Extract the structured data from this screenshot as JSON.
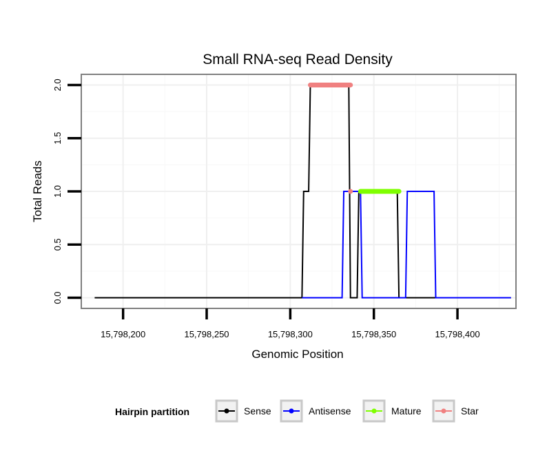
{
  "chart_data": {
    "type": "line",
    "title": "Small RNA-seq Read Density",
    "xlabel": "Genomic Position",
    "ylabel": "Total Reads",
    "xlim": [
      15798175,
      15798435
    ],
    "ylim": [
      -0.1,
      2.1
    ],
    "x_ticks": [
      15798200,
      15798250,
      15798300,
      15798350,
      15798400
    ],
    "x_tick_labels": [
      "15,798,200",
      "15,798,250",
      "15,798,300",
      "15,798,350",
      "15,798,400"
    ],
    "y_ticks": [
      0.0,
      0.5,
      1.0,
      1.5,
      2.0
    ],
    "y_tick_labels": [
      "0.0",
      "0.5",
      "1.0",
      "1.5",
      "2.0"
    ],
    "grid": true,
    "legend": {
      "title": "Hairpin partition",
      "position": "bottom",
      "entries": [
        {
          "name": "Sense",
          "color": "#000000"
        },
        {
          "name": "Antisense",
          "color": "#0000ff"
        },
        {
          "name": "Mature",
          "color": "#7fff00"
        },
        {
          "name": "Star",
          "color": "#f08080"
        }
      ]
    },
    "series": [
      {
        "name": "Sense",
        "color": "#000000",
        "style": "line",
        "x": [
          15798183,
          15798307,
          15798308,
          15798311,
          15798312,
          15798335,
          15798336,
          15798340,
          15798341,
          15798364,
          15798365,
          15798432
        ],
        "y": [
          0,
          0,
          1,
          1,
          2,
          2,
          0,
          0,
          1,
          1,
          0,
          0
        ]
      },
      {
        "name": "Antisense",
        "color": "#0000ff",
        "style": "line",
        "x": [
          15798307,
          15798331,
          15798332,
          15798342,
          15798343,
          15798369,
          15798370,
          15798386,
          15798387,
          15798432
        ],
        "y": [
          0,
          0,
          1,
          1,
          0,
          0,
          1,
          1,
          0,
          0
        ]
      },
      {
        "name": "Mature",
        "color": "#7fff00",
        "style": "thick-segment",
        "x": [
          15798342,
          15798365
        ],
        "y": [
          1,
          1
        ]
      },
      {
        "name": "Star",
        "color": "#f08080",
        "style": "thick-segment",
        "x": [
          15798312,
          15798336
        ],
        "y": [
          2,
          2
        ]
      },
      {
        "name": "Star point",
        "color": "#f08080",
        "style": "point",
        "x": [
          15798336
        ],
        "y": [
          1
        ]
      }
    ]
  }
}
